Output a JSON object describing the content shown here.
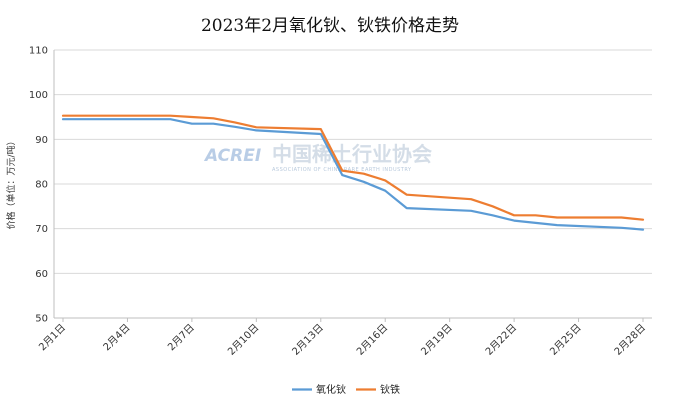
{
  "chart_data": {
    "type": "line",
    "title": "2023年2月氧化钬、钬铁价格走势",
    "ylabel": "价格（单位：万元/吨）",
    "xlabel": "",
    "ylim": [
      50,
      110
    ],
    "yticks": [
      50,
      60,
      70,
      80,
      90,
      100,
      110
    ],
    "x": [
      "2月1日",
      "2月2日",
      "2月3日",
      "2月6日",
      "2月7日",
      "2月8日",
      "2月9日",
      "2月10日",
      "2月13日",
      "2月14日",
      "2月15日",
      "2月16日",
      "2月17日",
      "2月20日",
      "2月21日",
      "2月22日",
      "2月23日",
      "2月24日",
      "2月27日",
      "2月28日"
    ],
    "xticks": [
      "2月1日",
      "2月4日",
      "2月7日",
      "2月10日",
      "2月13日",
      "2月16日",
      "2月19日",
      "2月22日",
      "2月25日",
      "2月28日"
    ],
    "xtick_positions": [
      0,
      3,
      6,
      9,
      12,
      15,
      18,
      21,
      24,
      27
    ],
    "x_positions": [
      0,
      1,
      2,
      5,
      6,
      7,
      8,
      9,
      12,
      13,
      14,
      15,
      16,
      19,
      20,
      21,
      22,
      23,
      26,
      27
    ],
    "series": [
      {
        "name": "氧化钬",
        "color": "#5b9bd5",
        "values": [
          94.5,
          94.5,
          94.5,
          94.5,
          93.5,
          93.5,
          92.8,
          92.0,
          91.2,
          82.0,
          80.5,
          78.5,
          74.6,
          74.0,
          73.0,
          71.8,
          71.3,
          70.8,
          70.2,
          69.8
        ]
      },
      {
        "name": "钬铁",
        "color": "#ed7d31",
        "values": [
          95.3,
          95.3,
          95.3,
          95.3,
          95.0,
          94.7,
          93.8,
          92.7,
          92.3,
          83.0,
          82.3,
          80.8,
          77.6,
          76.6,
          75.0,
          73.0,
          73.0,
          72.5,
          72.5,
          72.0
        ]
      }
    ],
    "legend_position": "bottom-center",
    "grid": "horizontal"
  },
  "watermark": {
    "logo": "ACREI",
    "name_cn": "中国稀土行业协会",
    "name_en": "ASSOCIATION OF CHINA RARE EARTH INDUSTRY"
  }
}
